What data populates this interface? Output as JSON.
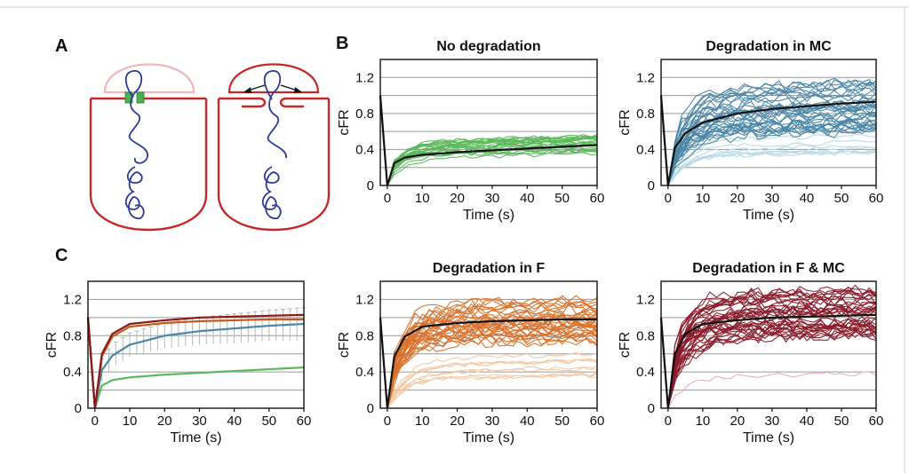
{
  "panel_letters": {
    "a": "A",
    "b": "B",
    "c": "C"
  },
  "colors": {
    "cell_outline": "#c62828",
    "cell_cap_faded": "#f0b8b8",
    "chromosome": "#2b3a9a",
    "septum_marker": "#4caf50",
    "mean_line": "#111111",
    "frame_border": "#cfcfcf"
  },
  "diagram": {
    "icons": [
      "cell-before-translocation-diagram",
      "cell-during-translocation-diagram"
    ]
  },
  "chart_data": [
    {
      "id": "no-deg",
      "type": "line",
      "title": "No degradation",
      "xlabel": "Time (s)",
      "ylabel": "cFR",
      "xlim": [
        -2,
        60
      ],
      "ylim": [
        0,
        1.4
      ],
      "xticks": [
        "0",
        "10",
        "20",
        "30",
        "40",
        "50",
        "60"
      ],
      "yticks": [
        "0",
        "0.4",
        "0.8",
        "1.2"
      ],
      "grid_y": [
        0.2,
        0.4,
        0.6,
        0.8,
        1.0,
        1.2
      ],
      "color": "#5cb85c",
      "n_traces": 24,
      "n_faded_traces": 0,
      "faded_color": "",
      "mean_series": {
        "x": [
          0,
          2,
          5,
          10,
          20,
          30,
          40,
          50,
          60
        ],
        "y": [
          0,
          0.25,
          0.31,
          0.34,
          0.37,
          0.39,
          0.41,
          0.43,
          0.45
        ]
      },
      "traces_range": [
        0.35,
        0.55
      ]
    },
    {
      "id": "deg-mc",
      "type": "line",
      "title": "Degradation in MC",
      "xlabel": "Time (s)",
      "ylabel": "cFR",
      "xlim": [
        -2,
        60
      ],
      "ylim": [
        0,
        1.4
      ],
      "xticks": [
        "0",
        "10",
        "20",
        "30",
        "40",
        "50",
        "60"
      ],
      "yticks": [
        "0",
        "0.4",
        "0.8",
        "1.2"
      ],
      "grid_y": [
        0.2,
        0.4,
        0.6,
        0.8,
        1.0,
        1.2
      ],
      "color": "#4a86a8",
      "n_traces": 36,
      "n_faded_traces": 8,
      "faded_color": "#b9dbe8",
      "mean_series": {
        "x": [
          0,
          2,
          5,
          10,
          20,
          30,
          40,
          50,
          60
        ],
        "y": [
          0,
          0.42,
          0.58,
          0.7,
          0.8,
          0.85,
          0.88,
          0.91,
          0.93
        ]
      },
      "traces_range": [
        0.6,
        1.15
      ]
    },
    {
      "id": "summary",
      "type": "line",
      "title": "",
      "xlabel": "Time (s)",
      "ylabel": "cFR",
      "xlim": [
        -2,
        60
      ],
      "ylim": [
        0,
        1.4
      ],
      "xticks": [
        "0",
        "10",
        "20",
        "30",
        "40",
        "50",
        "60"
      ],
      "yticks": [
        "0",
        "0.4",
        "0.8",
        "1.2"
      ],
      "grid_y": [
        0.2,
        0.4,
        0.6,
        0.8,
        1.0,
        1.2
      ],
      "series": [
        {
          "color": "#8b1a1a",
          "x": [
            0,
            2,
            5,
            10,
            20,
            30,
            40,
            50,
            60
          ],
          "y": [
            0,
            0.6,
            0.82,
            0.93,
            0.97,
            1.0,
            1.01,
            1.02,
            1.03
          ]
        },
        {
          "color": "#c45a1c",
          "x": [
            0,
            2,
            5,
            10,
            20,
            30,
            40,
            50,
            60
          ],
          "y": [
            0,
            0.57,
            0.79,
            0.9,
            0.94,
            0.96,
            0.97,
            0.98,
            0.98
          ]
        },
        {
          "color": "#4a86a8",
          "x": [
            0,
            2,
            5,
            10,
            20,
            30,
            40,
            50,
            60
          ],
          "y": [
            0,
            0.42,
            0.58,
            0.7,
            0.8,
            0.85,
            0.88,
            0.91,
            0.93
          ]
        },
        {
          "color": "#5cb85c",
          "x": [
            0,
            2,
            5,
            10,
            20,
            30,
            40,
            50,
            60
          ],
          "y": [
            0,
            0.25,
            0.31,
            0.34,
            0.37,
            0.39,
            0.41,
            0.43,
            0.45
          ]
        }
      ],
      "error_bars_on": 2
    },
    {
      "id": "deg-f",
      "type": "line",
      "title": "Degradation in F",
      "xlabel": "Time (s)",
      "ylabel": "cFR",
      "xlim": [
        -2,
        60
      ],
      "ylim": [
        0,
        1.4
      ],
      "xticks": [
        "0",
        "10",
        "20",
        "30",
        "40",
        "50",
        "60"
      ],
      "yticks": [
        "0",
        "0.4",
        "0.8",
        "1.2"
      ],
      "grid_y": [
        0.2,
        0.4,
        0.6,
        0.8,
        1.0,
        1.2
      ],
      "color": "#d9712b",
      "n_traces": 34,
      "n_faded_traces": 9,
      "faded_color": "#f3c9a6",
      "mean_series": {
        "x": [
          0,
          2,
          5,
          10,
          20,
          30,
          40,
          50,
          60
        ],
        "y": [
          0,
          0.57,
          0.79,
          0.9,
          0.94,
          0.96,
          0.97,
          0.98,
          0.98
        ]
      },
      "traces_range": [
        0.7,
        1.25
      ]
    },
    {
      "id": "deg-f-mc",
      "type": "line",
      "title": "Degradation in F & MC",
      "xlabel": "Time (s)",
      "ylabel": "cFR",
      "xlim": [
        -2,
        60
      ],
      "ylim": [
        0,
        1.4
      ],
      "xticks": [
        "0",
        "10",
        "20",
        "30",
        "40",
        "50",
        "60"
      ],
      "yticks": [
        "0",
        "0.4",
        "0.8",
        "1.2"
      ],
      "grid_y": [
        0.2,
        0.4,
        0.6,
        0.8,
        1.0,
        1.2
      ],
      "color": "#8b1a2a",
      "n_traces": 38,
      "n_faded_traces": 1,
      "faded_color": "#e6b1b9",
      "mean_series": {
        "x": [
          0,
          2,
          5,
          10,
          20,
          30,
          40,
          50,
          60
        ],
        "y": [
          0,
          0.6,
          0.82,
          0.93,
          0.97,
          1.0,
          1.01,
          1.02,
          1.03
        ]
      },
      "traces_range": [
        0.8,
        1.3
      ]
    }
  ]
}
